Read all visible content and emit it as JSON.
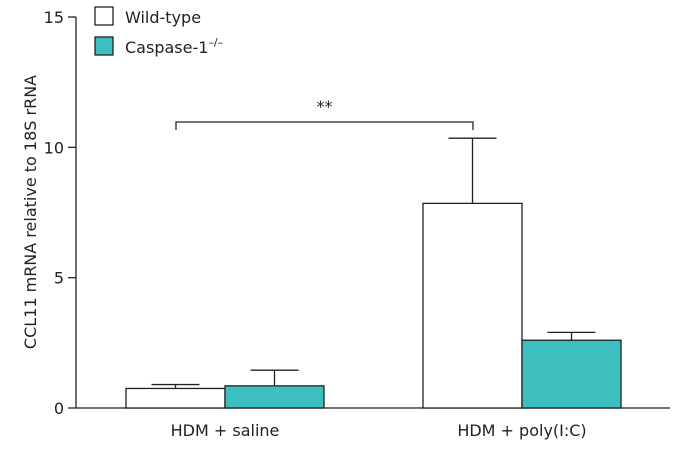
{
  "chart_data": {
    "type": "bar",
    "ylabel": "CCL11 mRNA relative to 18S rRNA",
    "ylim": [
      0,
      15
    ],
    "yticks": [
      0,
      5,
      10,
      15
    ],
    "categories": [
      "HDM + saline",
      "HDM + poly(I:C)"
    ],
    "series": [
      {
        "name": "Wild-type",
        "color": "#ffffff",
        "values": [
          0.75,
          7.85
        ],
        "errors": [
          0.15,
          2.5
        ]
      },
      {
        "name": "Caspase-1",
        "name_sup": "–/–",
        "color": "#3dbfbf",
        "values": [
          0.85,
          2.6
        ],
        "errors": [
          0.6,
          0.3
        ]
      }
    ],
    "legend_position": "top-left",
    "significance": {
      "label": "**",
      "between": [
        "HDM + saline",
        "HDM + poly(I:C)"
      ]
    }
  }
}
